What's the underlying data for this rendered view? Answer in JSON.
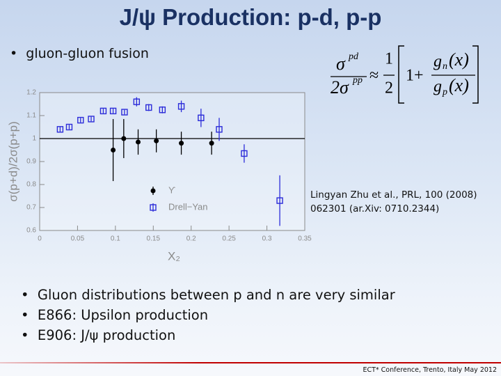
{
  "slide": {
    "title": "J/ψ Production: p-d, p-p",
    "bullets_top": [
      "gluon-gluon fusion"
    ],
    "formula": {
      "lhs_num": "σ",
      "lhs_num_sup": "pd",
      "lhs_den": "2σ",
      "lhs_den_sup": "pp",
      "approx": "≈",
      "half_num": "1",
      "half_den": "2",
      "one_plus": "1+",
      "gn": "g",
      "gn_sub": "n",
      "gn_arg": "(x)",
      "gp": "g",
      "gp_sub": "p",
      "gp_arg": "(x)"
    },
    "citation": [
      "Lingyan Zhu et al., PRL, 100 (2008)",
      "062301 (ar.Xiv: 0710.2344)"
    ],
    "bullets": [
      "Gluon distributions between p and n are very similar",
      "E866: Upsilon production",
      "E906: J/ψ production"
    ],
    "footer": "ECT* Conference, Trento, Italy May 2012"
  },
  "chart_data": {
    "type": "scatter",
    "xlabel": "X₂",
    "ylabel": "σ(p+d)/2σ(p+p)",
    "xlim": [
      0,
      0.35
    ],
    "ylim": [
      0.6,
      1.2
    ],
    "xticks": [
      0,
      0.05,
      0.1,
      0.15,
      0.2,
      0.25,
      0.3,
      0.35
    ],
    "yticks": [
      0.6,
      0.7,
      0.8,
      0.9,
      1,
      1.1,
      1.2
    ],
    "hline": 1,
    "legend": "bottom",
    "series": [
      {
        "name": "ϒ",
        "color": "#000000",
        "marker": "circle",
        "x": [
          0.097,
          0.111,
          0.13,
          0.154,
          0.187,
          0.227
        ],
        "values": [
          0.95,
          1.0,
          0.985,
          0.99,
          0.98,
          0.98
        ],
        "errors": [
          0.135,
          0.085,
          0.055,
          0.05,
          0.05,
          0.05
        ]
      },
      {
        "name": "Drell−Yan",
        "color": "#2b2bd9",
        "marker": "square",
        "x": [
          0.027,
          0.039,
          0.054,
          0.068,
          0.084,
          0.097,
          0.112,
          0.128,
          0.144,
          0.162,
          0.187,
          0.213,
          0.237,
          0.27,
          0.317
        ],
        "values": [
          1.04,
          1.05,
          1.08,
          1.085,
          1.12,
          1.12,
          1.115,
          1.16,
          1.135,
          1.125,
          1.14,
          1.09,
          1.04,
          0.935,
          0.73
        ],
        "errors": [
          0.01,
          0.01,
          0.01,
          0.01,
          0.01,
          0.01,
          0.01,
          0.02,
          0.015,
          0.015,
          0.025,
          0.04,
          0.05,
          0.04,
          0.11
        ]
      }
    ]
  }
}
